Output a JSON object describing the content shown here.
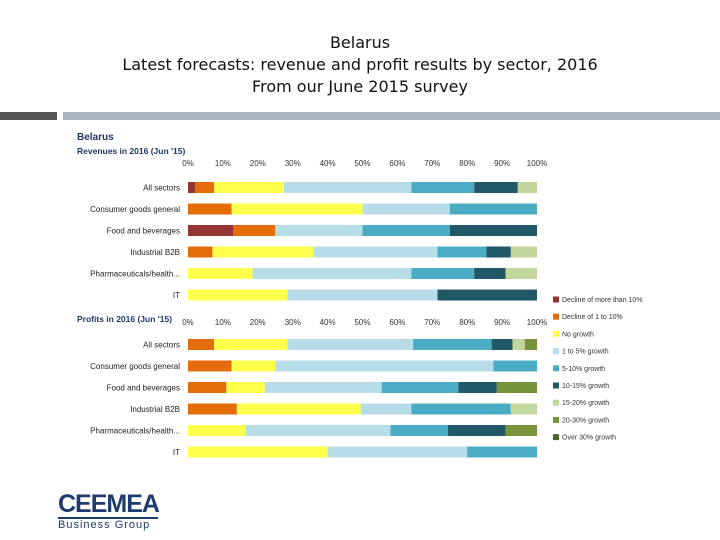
{
  "slide": {
    "title_lines": [
      "Belarus",
      "Latest forecasts: revenue and profit results by sector, 2016",
      "From our June 2015 survey"
    ]
  },
  "logo": {
    "main": "CEEMEA",
    "sub": "Business Group"
  },
  "colors": {
    "accent_bar_dark": "#555555",
    "accent_bar_light": "#a9b3bf",
    "logo": "#1f3a6e"
  },
  "chart_data": [
    {
      "type": "bar",
      "orientation": "horizontal",
      "stacked": true,
      "title": "Belarus",
      "subtitle": "Revenues in 2016 (Jun '15)",
      "xlim": [
        0,
        100
      ],
      "xticks": [
        "0%",
        "10%",
        "20%",
        "30%",
        "40%",
        "50%",
        "60%",
        "70%",
        "80%",
        "90%",
        "100%"
      ],
      "categories": [
        "All sectors",
        "Consumer goods general",
        "Food and beverages",
        "Industrial B2B",
        "Pharmaceuticals/health...",
        "IT"
      ],
      "series": [
        {
          "name": "Decline of more than 10%",
          "color": "#943634",
          "values": [
            2,
            0,
            13,
            0,
            0,
            0
          ]
        },
        {
          "name": "Decline of 1 to 10%",
          "color": "#e46c0a",
          "values": [
            5.5,
            12.5,
            12,
            7,
            0,
            0
          ]
        },
        {
          "name": "No growth",
          "color": "#ffff4c",
          "values": [
            20,
            37.5,
            0,
            29,
            18.5,
            28.5
          ]
        },
        {
          "name": "1 to 5% growth",
          "color": "#b7dde8",
          "values": [
            36.5,
            25,
            25,
            35.5,
            45.5,
            43
          ]
        },
        {
          "name": "5-10% growth",
          "color": "#4bacc6",
          "values": [
            18,
            25,
            25,
            14,
            18,
            0
          ]
        },
        {
          "name": "10-15% growth",
          "color": "#215968",
          "values": [
            12.5,
            0,
            25,
            7,
            9,
            28.5
          ]
        },
        {
          "name": "15-20% growth",
          "color": "#c3d69b",
          "values": [
            5.5,
            0,
            0,
            7.5,
            9,
            0
          ]
        },
        {
          "name": "20-30% growth",
          "color": "#77933c",
          "values": [
            0,
            0,
            0,
            0,
            0,
            0
          ]
        },
        {
          "name": "Over 30% growth",
          "color": "#4f6228",
          "values": [
            0,
            0,
            0,
            0,
            0,
            0
          ]
        }
      ]
    },
    {
      "type": "bar",
      "orientation": "horizontal",
      "stacked": true,
      "title": "",
      "subtitle": "Profits in 2016 (Jun '15)",
      "xlim": [
        0,
        100
      ],
      "xticks": [
        "0%",
        "10%",
        "20%",
        "30%",
        "40%",
        "50%",
        "60%",
        "70%",
        "80%",
        "90%",
        "100%"
      ],
      "categories": [
        "All sectors",
        "Consumer goods general",
        "Food and beverages",
        "Industrial B2B",
        "Pharmaceuticals/health...",
        "IT"
      ],
      "series": [
        {
          "name": "Decline of more than 10%",
          "color": "#943634",
          "values": [
            0,
            0,
            0,
            0,
            0,
            0
          ]
        },
        {
          "name": "Decline of 1 to 10%",
          "color": "#e46c0a",
          "values": [
            7.5,
            12.5,
            11,
            14,
            0,
            0
          ]
        },
        {
          "name": "No growth",
          "color": "#ffff4c",
          "values": [
            21,
            12.5,
            11,
            35.5,
            16.5,
            40
          ]
        },
        {
          "name": "1 to 5% growth",
          "color": "#b7dde8",
          "values": [
            36,
            62.5,
            33.5,
            14.5,
            41.5,
            40
          ]
        },
        {
          "name": "5-10% growth",
          "color": "#4bacc6",
          "values": [
            22.5,
            12.5,
            22,
            28.5,
            16.5,
            20
          ]
        },
        {
          "name": "10-15% growth",
          "color": "#215968",
          "values": [
            6,
            0,
            11,
            0,
            16.5,
            0
          ]
        },
        {
          "name": "15-20% growth",
          "color": "#c3d69b",
          "values": [
            3.5,
            0,
            0,
            7.5,
            0,
            0
          ]
        },
        {
          "name": "20-30% growth",
          "color": "#77933c",
          "values": [
            3.5,
            0,
            11.5,
            0,
            9,
            0
          ]
        },
        {
          "name": "Over 30% growth",
          "color": "#4f6228",
          "values": [
            0,
            0,
            0,
            0,
            0,
            0
          ]
        }
      ]
    }
  ],
  "legend": {
    "placement": "right",
    "items": [
      {
        "label": "Decline of more than 10%",
        "color": "#943634"
      },
      {
        "label": "Decline of 1 to 10%",
        "color": "#e46c0a"
      },
      {
        "label": "No growth",
        "color": "#ffff4c"
      },
      {
        "label": "1 to 5% growth",
        "color": "#b7dde8"
      },
      {
        "label": "5-10% growth",
        "color": "#4bacc6"
      },
      {
        "label": "10-15% growth",
        "color": "#215968"
      },
      {
        "label": "15-20% growth",
        "color": "#c3d69b"
      },
      {
        "label": "20-30% growth",
        "color": "#77933c"
      },
      {
        "label": "Over 30% growth",
        "color": "#4f6228"
      }
    ]
  }
}
